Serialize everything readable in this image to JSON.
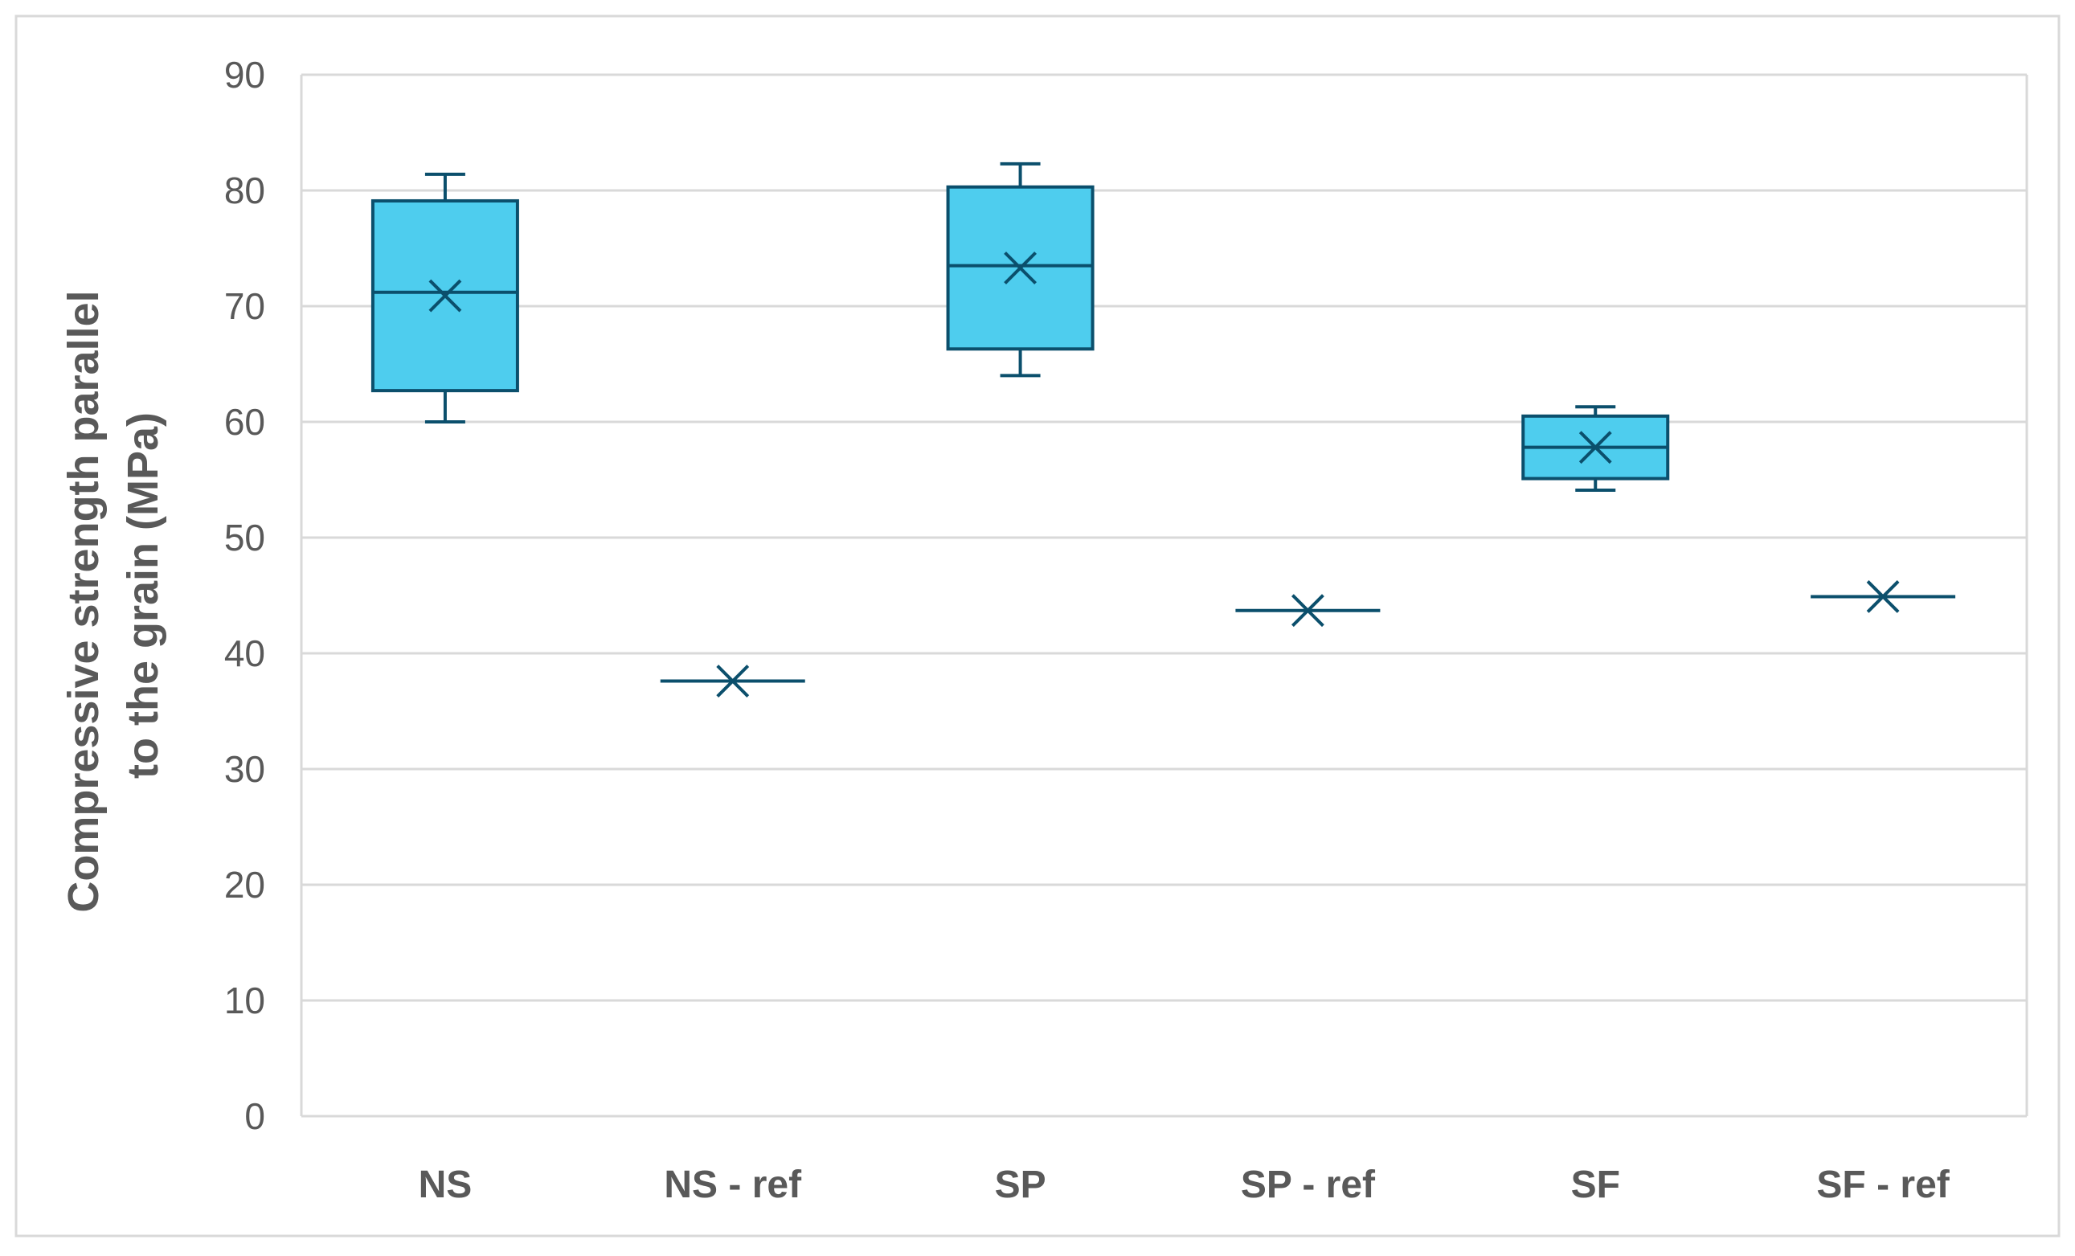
{
  "chart_data": {
    "type": "box",
    "title": "",
    "xlabel": "",
    "ylabel_lines": [
      "Compressive strength parallel",
      "to the grain (MPa)"
    ],
    "ylim": [
      0,
      90
    ],
    "yticks": [
      "0",
      "10",
      "20",
      "30",
      "40",
      "50",
      "60",
      "70",
      "80",
      "90"
    ],
    "grid": true,
    "legend": "none",
    "colors": {
      "box_fill": "#4ECDEE",
      "box_stroke": "#0B4F6C",
      "grid": "#D9D9D9",
      "frame": "#D9D9D9",
      "text": "#595959"
    },
    "categories": [
      "NS",
      "NS - ref",
      "SP",
      "SP - ref",
      "SF",
      "SF - ref"
    ],
    "boxes": [
      {
        "category": "NS",
        "min": 60.0,
        "q1": 62.7,
        "median": 71.2,
        "q3": 79.1,
        "max": 81.4,
        "mean": 70.9
      },
      {
        "category": "NS - ref",
        "min": 37.6,
        "q1": 37.6,
        "median": 37.6,
        "q3": 37.6,
        "max": 37.6,
        "mean": 37.6
      },
      {
        "category": "SP",
        "min": 64.0,
        "q1": 66.3,
        "median": 73.5,
        "q3": 80.3,
        "max": 82.3,
        "mean": 73.3
      },
      {
        "category": "SP - ref",
        "min": 43.7,
        "q1": 43.7,
        "median": 43.7,
        "q3": 43.7,
        "max": 43.7,
        "mean": 43.7
      },
      {
        "category": "SF",
        "min": 54.1,
        "q1": 55.1,
        "median": 57.8,
        "q3": 60.5,
        "max": 61.3,
        "mean": 57.8
      },
      {
        "category": "SF - ref",
        "min": 44.9,
        "q1": 44.9,
        "median": 44.9,
        "q3": 44.9,
        "max": 44.9,
        "mean": 44.9
      }
    ]
  }
}
